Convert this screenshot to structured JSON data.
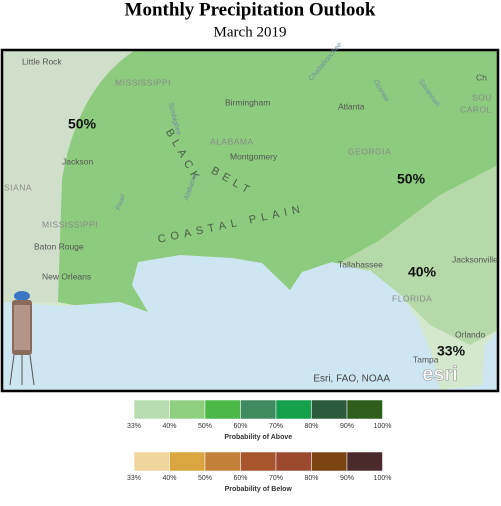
{
  "header": {
    "title": "Monthly Precipitation Outlook",
    "subtitle": "March 2019"
  },
  "map": {
    "places": [
      "Little Rock",
      "MISSISSIPPI",
      "Birmingham",
      "Atlanta",
      "ALABAMA",
      "Montgomery",
      "GEORGIA",
      "Jackson",
      "MISSISSIPPI",
      "Baton Rouge",
      "New Orleans",
      "Tallahassee",
      "Jacksonville",
      "FLORIDA",
      "Orlando",
      "Tampa",
      "SOU",
      "CAROL",
      "SIANA",
      "Ch"
    ],
    "regions": [
      "BLACK",
      "BELT",
      "COASTAL PLAIN"
    ],
    "rivers": [
      "Tombigbee",
      "Chattahoochee",
      "Oconee",
      "Savannah",
      "Pearl",
      "Alabama"
    ],
    "contour_labels": [
      "50%",
      "50%",
      "40%",
      "33%"
    ],
    "attribution": "Esri, FAO, NOAA",
    "logo": "esri"
  },
  "legend_above": {
    "title": "Probability of Above",
    "labels": [
      "33%",
      "40%",
      "50%",
      "60%",
      "70%",
      "80%",
      "90%",
      "100%"
    ],
    "colors": [
      "#b9ddb1",
      "#8fd080",
      "#4cb848",
      "#3f8a5e",
      "#15a04c",
      "#2b5a3c",
      "#2f5d1c"
    ]
  },
  "legend_below": {
    "title": "Probability of Below",
    "labels": [
      "33%",
      "40%",
      "50%",
      "60%",
      "70%",
      "80%",
      "90%",
      "100%"
    ],
    "colors": [
      "#f0d59c",
      "#dba640",
      "#c4813a",
      "#a7552d",
      "#9b4a30",
      "#7a4410",
      "#4b2a2c"
    ]
  }
}
